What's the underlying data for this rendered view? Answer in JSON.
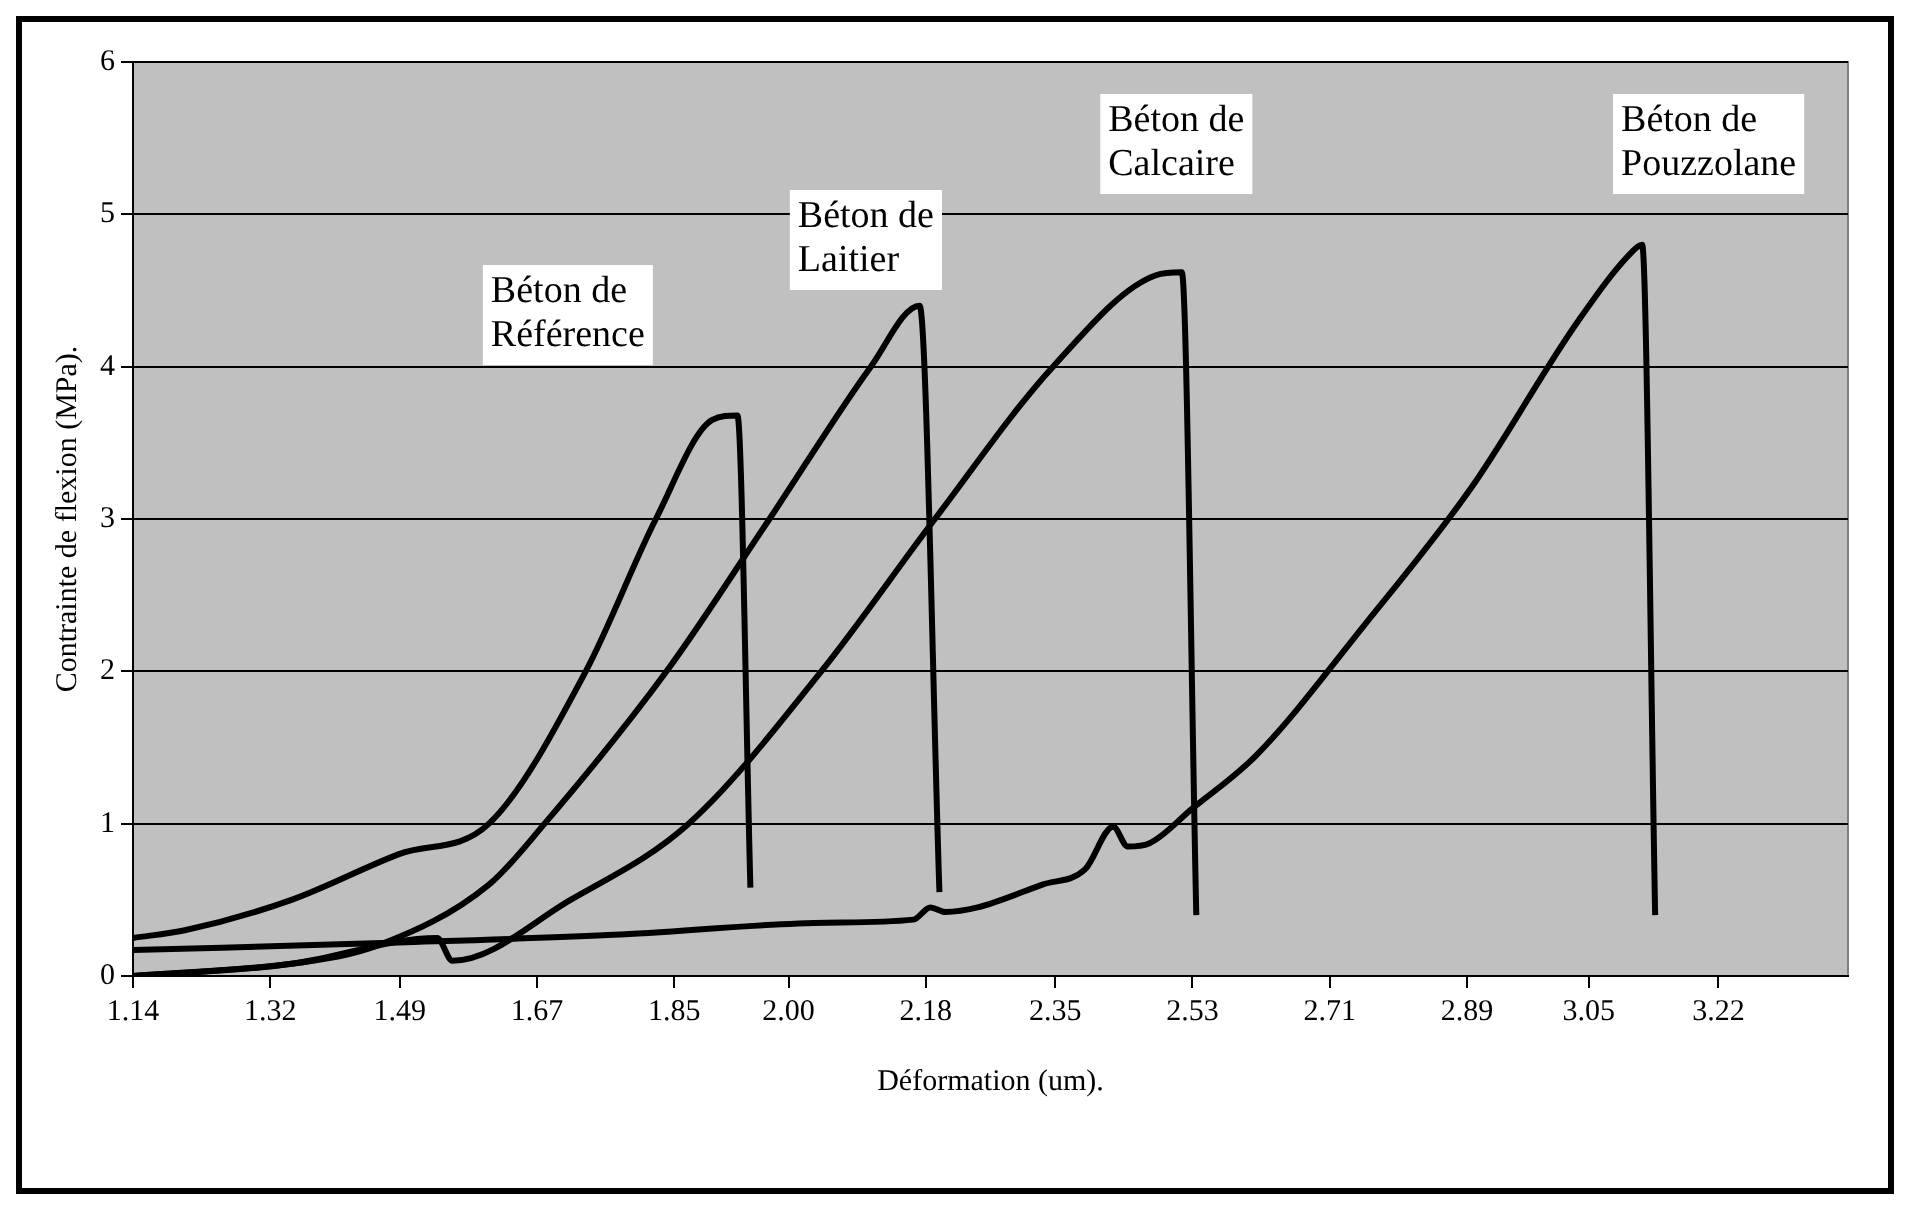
{
  "chart_data": {
    "type": "line",
    "xlabel": "Déformation (um).",
    "ylabel": "Contrainte de flexion (MPa).",
    "xlim": [
      1.14,
      3.39
    ],
    "xticks": [
      1.14,
      1.32,
      1.49,
      1.67,
      1.85,
      {
        "value": 2.0,
        "label": "2.00"
      },
      2.18,
      2.35,
      2.53,
      2.71,
      2.89,
      3.05,
      3.22
    ],
    "ylim": [
      0,
      6
    ],
    "yticks": [
      0,
      1,
      2,
      3,
      4,
      5,
      6
    ],
    "grid": "y",
    "legend": false,
    "marker": "none",
    "line_style": "solid",
    "series": [
      {
        "color": "#000000",
        "x": [
          1.14,
          1.208,
          1.348,
          1.489,
          1.607,
          1.734,
          1.826,
          1.9,
          1.933,
          1.95
        ],
        "values": [
          0.25,
          0.3,
          0.5,
          0.8,
          1.0,
          2.0,
          3.0,
          3.65,
          3.68,
          0.58
        ]
      },
      {
        "color": "#000000",
        "x": [
          1.14,
          1.348,
          1.461,
          1.607,
          1.68,
          1.84,
          1.975,
          2.108,
          2.172,
          2.198
        ],
        "values": [
          0.0,
          0.08,
          0.2,
          0.6,
          1.0,
          2.0,
          3.0,
          4.0,
          4.4,
          0.55
        ]
      },
      {
        "color": "#000000",
        "x": [
          1.14,
          1.348,
          1.539,
          1.559,
          1.714,
          1.869,
          2.043,
          2.192,
          2.347,
          2.482,
          2.516,
          2.535
        ],
        "values": [
          0.0,
          0.08,
          0.25,
          0.1,
          0.5,
          1.0,
          2.0,
          3.0,
          4.0,
          4.6,
          4.62,
          0.4
        ]
      },
      {
        "color": "#000000",
        "x": [
          1.14,
          1.489,
          1.77,
          2.051,
          2.164,
          2.186,
          2.206,
          2.248,
          2.333,
          2.389,
          2.426,
          2.445,
          2.473,
          2.53,
          2.614,
          2.755,
          2.895,
          3.036,
          3.106,
          3.12,
          3.137
        ],
        "values": [
          0.17,
          0.22,
          0.27,
          0.35,
          0.37,
          0.45,
          0.42,
          0.45,
          0.6,
          0.7,
          0.98,
          0.85,
          0.87,
          1.1,
          1.45,
          2.3,
          3.2,
          4.3,
          4.75,
          4.8,
          0.4
        ]
      }
    ],
    "annotations": [
      "Béton de Référence",
      "Béton de Laitier",
      "Béton de Calcaire",
      "Béton de Pouzzolane"
    ]
  }
}
